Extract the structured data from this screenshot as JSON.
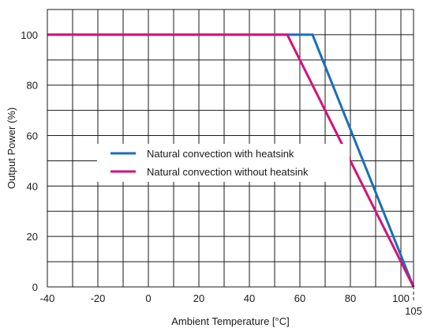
{
  "chart_data": {
    "type": "line",
    "xlabel": "Ambient Temperature [°C]",
    "ylabel": "Output Power (%)",
    "xlim": [
      -40,
      105
    ],
    "ylim": [
      0,
      110
    ],
    "x_ticks": [
      -40,
      -20,
      0,
      20,
      40,
      60,
      80,
      100
    ],
    "x_tick_labels": [
      "-40",
      "-20",
      "0",
      "20",
      "40",
      "60",
      "80",
      "100"
    ],
    "y_ticks": [
      0,
      20,
      40,
      60,
      80,
      100
    ],
    "y_tick_labels": [
      "0",
      "20",
      "40",
      "60",
      "80",
      "100"
    ],
    "grid": true,
    "marker": {
      "x": 105,
      "label": "105",
      "style": "dashed"
    },
    "legend_position": "center-left",
    "series": [
      {
        "name": "Natural convection with heatsink",
        "color": "#1a6fb8",
        "x": [
          -40,
          65,
          105
        ],
        "y": [
          100,
          100,
          0
        ]
      },
      {
        "name": "Natural convection without heatsink",
        "color": "#d4127a",
        "x": [
          -40,
          55,
          105
        ],
        "y": [
          100,
          100,
          0
        ]
      }
    ]
  }
}
